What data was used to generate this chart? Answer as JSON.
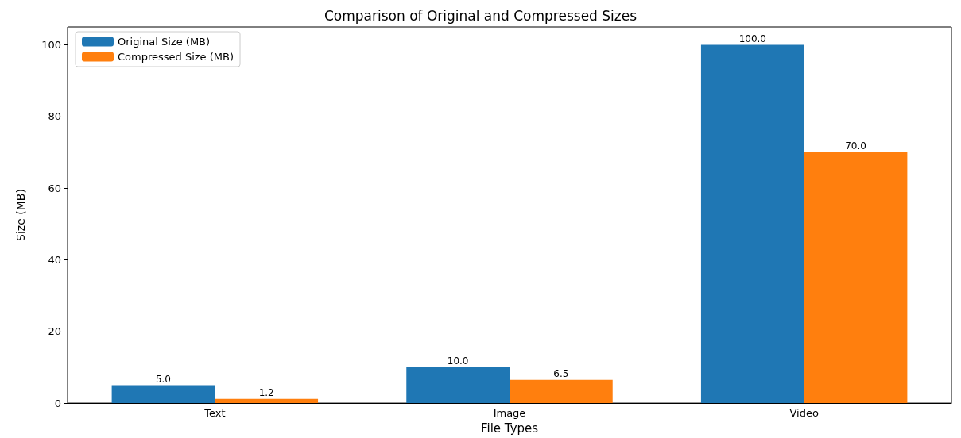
{
  "chart_data": {
    "type": "bar",
    "title": "Comparison of Original and Compressed Sizes",
    "xlabel": "File Types",
    "ylabel": "Size (MB)",
    "categories": [
      "Text",
      "Image",
      "Video"
    ],
    "series": [
      {
        "name": "Original Size (MB)",
        "color": "#1f77b4",
        "values": [
          5.0,
          10.0,
          100.0
        ],
        "value_labels": [
          "5.0",
          "10.0",
          "100.0"
        ]
      },
      {
        "name": "Compressed Size (MB)",
        "color": "#ff7f0e",
        "values": [
          1.2,
          6.5,
          70.0
        ],
        "value_labels": [
          "1.2",
          "6.5",
          "70.0"
        ]
      }
    ],
    "ylim": [
      0,
      105
    ],
    "yticks": [
      0,
      20,
      40,
      60,
      80,
      100
    ],
    "grid": false,
    "legend": "top left"
  }
}
